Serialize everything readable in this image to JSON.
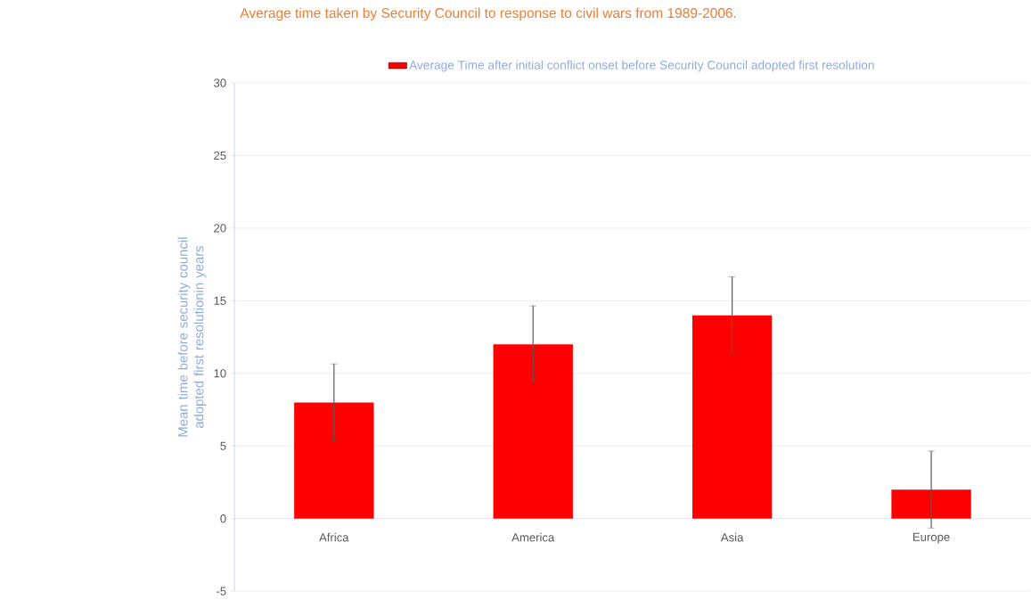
{
  "chart_data": {
    "type": "bar",
    "title": "Average time taken by Security Council to response to civil wars from 1989-2006.",
    "ylabel": "Mean time before security council adopted first resolutionin years",
    "categories": [
      "Africa",
      "America",
      "Asia",
      "Europe"
    ],
    "series": [
      {
        "name": "Average Time after initial conflict onset before Security Council adopted first resolution",
        "color": "#ff0000",
        "values": [
          8,
          12,
          14,
          2
        ],
        "errors": [
          2.65,
          2.65,
          2.65,
          2.65
        ]
      }
    ],
    "ylim": [
      -5,
      30
    ],
    "yticks": [
      -5,
      0,
      5,
      10,
      15,
      20,
      25,
      30
    ],
    "grid": "y",
    "legend": "top"
  }
}
